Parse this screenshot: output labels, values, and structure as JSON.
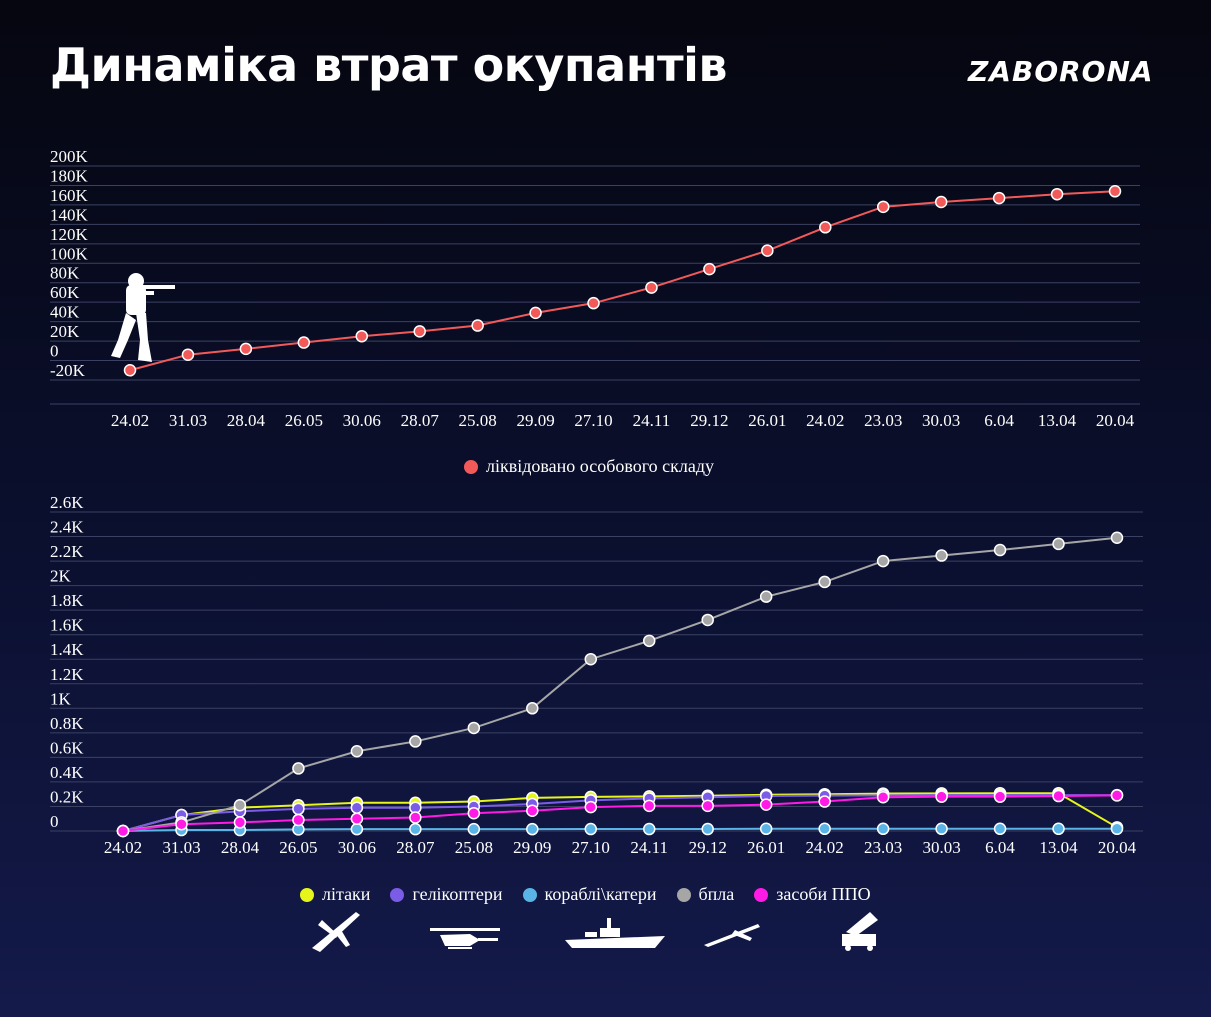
{
  "header": {
    "title": "Динаміка втрат окупантів",
    "brand": "ZABORONA"
  },
  "colors": {
    "personnel": "#f25a5a",
    "aircraft": "#e6f51a",
    "helicopters": "#7b5ce6",
    "ships": "#5ab4e6",
    "uav": "#a6a6a6",
    "air_defense": "#ff1ae6"
  },
  "icons": [
    "soldier-icon",
    "plane-icon",
    "helicopter-icon",
    "ship-icon",
    "drone-icon",
    "air-defense-icon"
  ],
  "chart_data": [
    {
      "type": "line",
      "categories": [
        "24.02",
        "31.03",
        "28.04",
        "26.05",
        "30.06",
        "28.07",
        "25.08",
        "29.09",
        "27.10",
        "24.11",
        "29.12",
        "26.01",
        "24.02",
        "23.03",
        "30.03",
        "6.04",
        "13.04",
        "20.04"
      ],
      "y_ticks": [
        "200K",
        "180K",
        "160K",
        "140K",
        "120K",
        "100K",
        "80K",
        "60K",
        "40K",
        "20K",
        "0",
        "-20K"
      ],
      "ylim": [
        -20000,
        200000
      ],
      "grid": true,
      "legend_position": "bottom-center",
      "series": [
        {
          "name": "ліквідовано особового складу",
          "color": "#f25a5a",
          "values": [
            -10000,
            6000,
            12000,
            18500,
            25000,
            30000,
            36000,
            49000,
            59000,
            75000,
            94000,
            113000,
            137000,
            158000,
            163000,
            167000,
            171000,
            174000
          ]
        }
      ]
    },
    {
      "type": "line",
      "categories": [
        "24.02",
        "31.03",
        "28.04",
        "26.05",
        "30.06",
        "28.07",
        "25.08",
        "29.09",
        "27.10",
        "24.11",
        "29.12",
        "26.01",
        "24.02",
        "23.03",
        "30.03",
        "6.04",
        "13.04",
        "20.04"
      ],
      "y_ticks": [
        "2.6K",
        "2.4K",
        "2.2K",
        "2K",
        "1.8K",
        "1.6K",
        "1.4K",
        "1.2K",
        "1K",
        "0.8K",
        "0.6K",
        "0.4K",
        "0.2K",
        "0"
      ],
      "ylim": [
        -100,
        2600
      ],
      "grid": true,
      "legend_position": "bottom-center",
      "series": [
        {
          "name": "літаки",
          "color": "#e6f51a",
          "values": [
            0,
            130,
            190,
            210,
            230,
            230,
            240,
            270,
            278,
            282,
            287,
            295,
            300,
            305,
            307,
            308,
            308,
            30
          ]
        },
        {
          "name": "гелікоптери",
          "color": "#7b5ce6",
          "values": [
            0,
            130,
            160,
            180,
            190,
            190,
            200,
            220,
            250,
            265,
            275,
            285,
            288,
            290,
            292,
            292,
            292,
            292
          ]
        },
        {
          "name": "кораблі\\катери",
          "color": "#5ab4e6",
          "values": [
            0,
            8,
            8,
            13,
            15,
            15,
            15,
            15,
            16,
            16,
            16,
            18,
            18,
            18,
            18,
            18,
            18,
            18
          ]
        },
        {
          "name": "бпла",
          "color": "#a6a6a6",
          "values": [
            0,
            70,
            210,
            510,
            650,
            730,
            840,
            1000,
            1400,
            1550,
            1720,
            1910,
            2030,
            2200,
            2245,
            2290,
            2340,
            2390
          ]
        },
        {
          "name": "засоби ППО",
          "color": "#ff1ae6",
          "values": [
            0,
            55,
            70,
            90,
            100,
            110,
            145,
            165,
            195,
            205,
            205,
            215,
            240,
            275,
            280,
            280,
            285,
            290
          ]
        }
      ]
    }
  ]
}
